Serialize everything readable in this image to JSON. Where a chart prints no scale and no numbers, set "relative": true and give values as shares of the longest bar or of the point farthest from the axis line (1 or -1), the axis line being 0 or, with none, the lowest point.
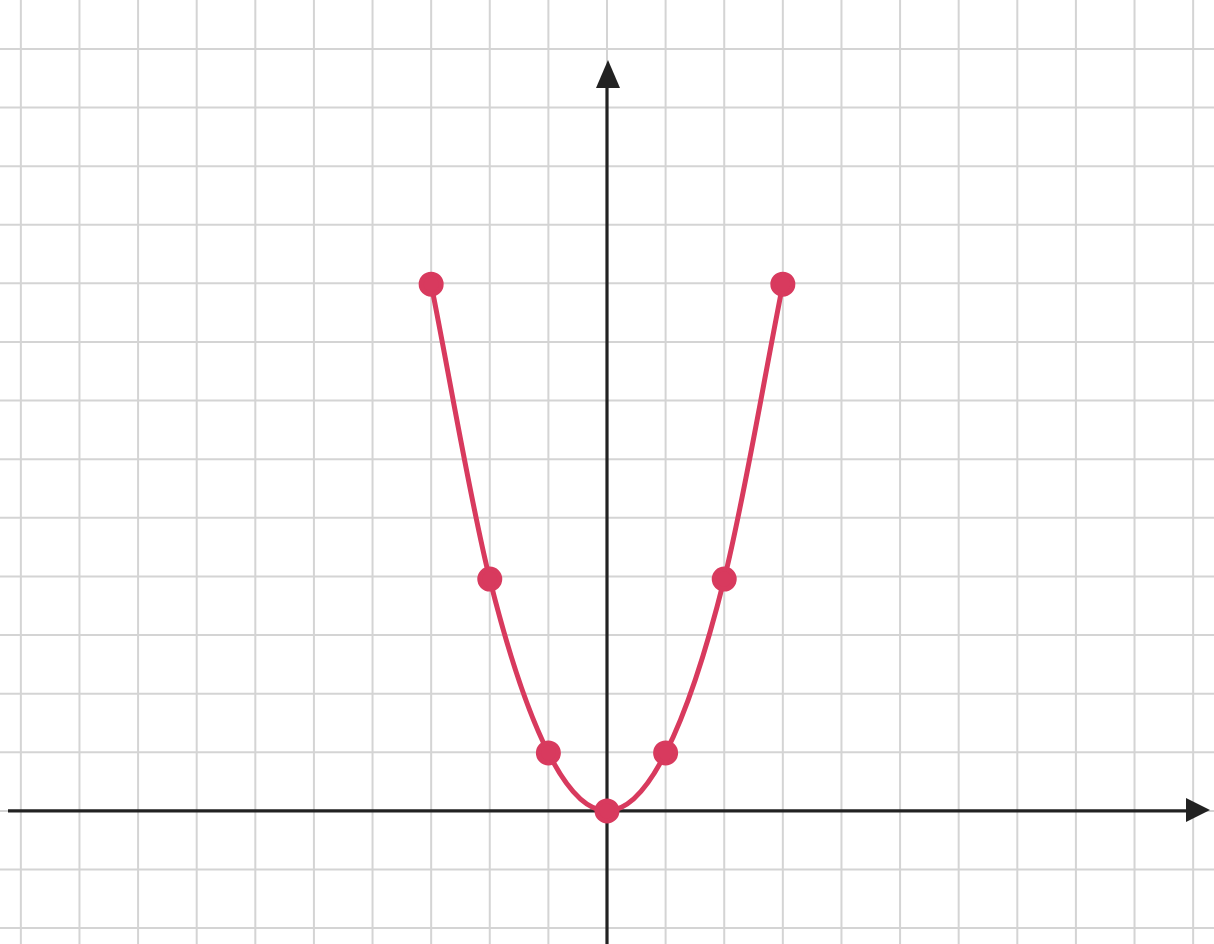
{
  "chart_data": {
    "type": "line",
    "relative": true,
    "categories": [
      null,
      null,
      null,
      null,
      null,
      null,
      null
    ],
    "series": [
      {
        "color": "#d83a5e",
        "values": [
          1,
          0.44,
          0.11,
          0,
          0.11,
          0.44,
          1
        ]
      }
    ],
    "grid": true,
    "marker": "circle",
    "line_style": "solid",
    "legend": false
  }
}
